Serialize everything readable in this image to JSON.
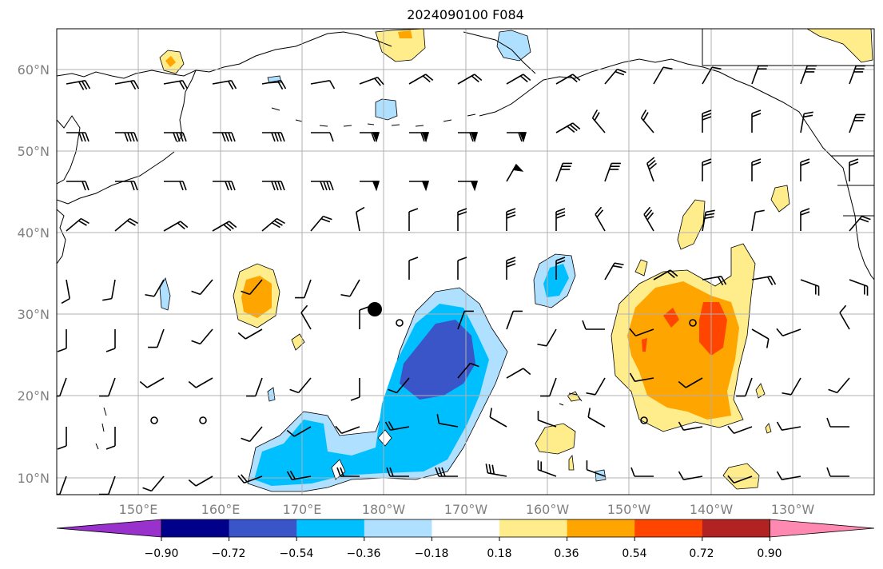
{
  "title": "2024090100 F084",
  "lat_labels": [
    "60°N",
    "50°N",
    "40°N",
    "30°N",
    "20°N",
    "10°N"
  ],
  "lon_labels": [
    "150°E",
    "160°E",
    "170°E",
    "180°W",
    "170°W",
    "160°W",
    "150°W",
    "140°W",
    "130°W"
  ],
  "colorbar": {
    "tick_labels": [
      "−0.90",
      "−0.72",
      "−0.54",
      "−0.36",
      "−0.18",
      "0.18",
      "0.36",
      "0.54",
      "0.72",
      "0.90"
    ],
    "colors": [
      "#9932cc",
      "#00008b",
      "#3a55c8",
      "#00bfff",
      "#b0e0ff",
      "#ffffff",
      "#ffec8b",
      "#ffa500",
      "#ff4500",
      "#b22222",
      "#ff89b0"
    ]
  },
  "colors": {
    "coast": "#000000",
    "grid": "#b0b0b0",
    "tick_label": "#808080"
  }
}
